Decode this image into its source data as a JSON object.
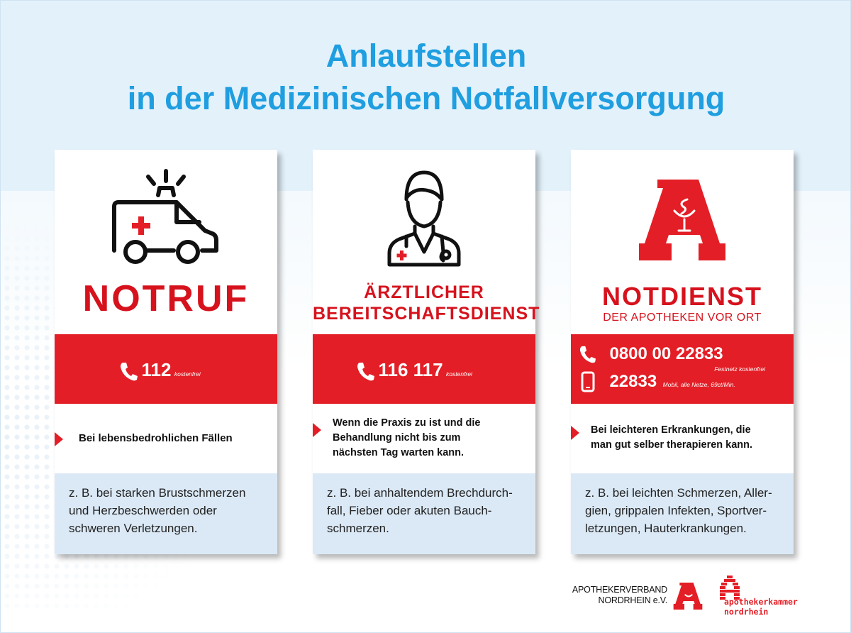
{
  "title_line1": "Anlaufstellen",
  "title_line2": "in der Medizinischen Notfallversorgung",
  "colors": {
    "title_blue": "#1f9ee0",
    "red": "#e41e26",
    "light_blue": "#dbe9f6"
  },
  "cards": [
    {
      "icon": "ambulance-icon",
      "title": "NOTRUF",
      "phone_number": "112",
      "phone_note": "kostenfrei",
      "description": "Bei lebensbedrohlichen Fällen",
      "example_lines": [
        "z. B. bei starken Brustschmerzen",
        "und Herzbeschwerden oder",
        "schweren Verletzungen."
      ]
    },
    {
      "icon": "doctor-icon",
      "title_line1": "ÄRZTLICHER",
      "title_line2": "BEREITSCHAFTSDIENST",
      "phone_number": "116 117",
      "phone_note": "kostenfrei",
      "description_lines": [
        "Wenn die Praxis zu ist und die",
        "Behandlung nicht bis zum",
        "nächsten Tag warten kann."
      ],
      "example_lines": [
        "z. B. bei anhaltendem Brechdurch-",
        "fall, Fieber oder akuten Bauch-",
        "schmerzen."
      ]
    },
    {
      "icon": "pharmacy-a-icon",
      "title": "NOTDIENST",
      "subtitle": "DER APOTHEKEN VOR ORT",
      "phone_landline": "0800 00 22833",
      "phone_landline_note": "Festnetz kostenfrei",
      "phone_mobile": "22833",
      "phone_mobile_note": "Mobil, alle Netze, 69ct/Min.",
      "description_lines": [
        "Bei leichteren Erkrankungen, die",
        "man gut selber therapieren kann."
      ],
      "example_lines": [
        "z. B. bei leichten Schmerzen, Aller-",
        "gien, grippalen Infekten, Sportver-",
        "letzungen, Hauterkrankungen."
      ]
    }
  ],
  "footer": {
    "verband_line1": "APOTHEKERVERBAND",
    "verband_line2": "NORDRHEIN e.V.",
    "kammer_line1": "apothekerkammer",
    "kammer_line2": "nordrhein"
  }
}
